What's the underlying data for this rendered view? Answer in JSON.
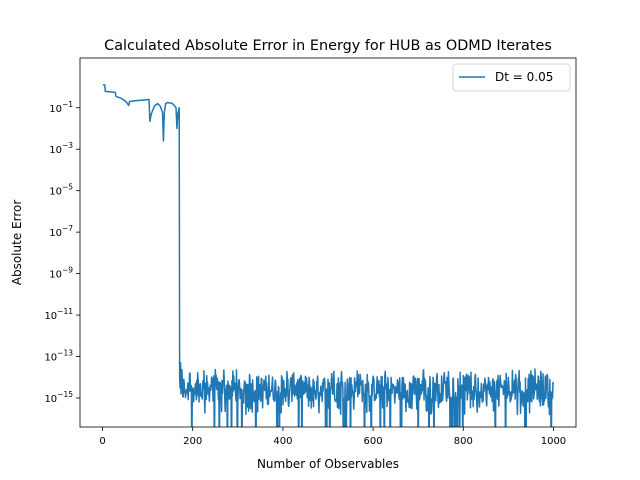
{
  "chart_data": {
    "type": "line",
    "title": "Calculated Absolute Error in Energy for HUB as ODMD Iterates",
    "xlabel": "Number of Observables",
    "ylabel": "Absolute Error",
    "xlim": [
      -50,
      1050
    ],
    "ylim_log10": [
      -16.4,
      1.4
    ],
    "yscale": "log",
    "grid": false,
    "legend": {
      "location": "top-right",
      "entries": [
        "Dt = 0.05"
      ]
    },
    "x_ticks": [
      0,
      200,
      400,
      600,
      800,
      1000
    ],
    "x_tick_labels": [
      "0",
      "200",
      "400",
      "600",
      "800",
      "1000"
    ],
    "y_ticks": [
      {
        "base": "10",
        "exp": "−15",
        "log10": -15
      },
      {
        "base": "10",
        "exp": "−13",
        "log10": -13
      },
      {
        "base": "10",
        "exp": "−11",
        "log10": -11
      },
      {
        "base": "10",
        "exp": "−9",
        "log10": -9
      },
      {
        "base": "10",
        "exp": "−7",
        "log10": -7
      },
      {
        "base": "10",
        "exp": "−5",
        "log10": -5
      },
      {
        "base": "10",
        "exp": "−3",
        "log10": -3
      },
      {
        "base": "10",
        "exp": "−1",
        "log10": -1
      }
    ],
    "series": [
      {
        "name": "Dt = 0.05",
        "color": "#1f77b4",
        "head_points": [
          {
            "x": 1,
            "y": 1.3
          },
          {
            "x": 5,
            "y": 1.25
          },
          {
            "x": 6,
            "y": 0.62
          },
          {
            "x": 28,
            "y": 0.55
          },
          {
            "x": 30,
            "y": 0.35
          },
          {
            "x": 42,
            "y": 0.28
          },
          {
            "x": 52,
            "y": 0.2
          },
          {
            "x": 58,
            "y": 0.13
          },
          {
            "x": 60,
            "y": 0.2
          },
          {
            "x": 75,
            "y": 0.22
          },
          {
            "x": 95,
            "y": 0.24
          },
          {
            "x": 103,
            "y": 0.25
          },
          {
            "x": 105,
            "y": 0.022
          },
          {
            "x": 108,
            "y": 0.05
          },
          {
            "x": 115,
            "y": 0.12
          },
          {
            "x": 122,
            "y": 0.16
          },
          {
            "x": 128,
            "y": 0.12
          },
          {
            "x": 133,
            "y": 0.06
          },
          {
            "x": 135,
            "y": 0.0025
          },
          {
            "x": 137,
            "y": 0.06
          },
          {
            "x": 140,
            "y": 0.16
          },
          {
            "x": 145,
            "y": 0.18
          },
          {
            "x": 155,
            "y": 0.16
          },
          {
            "x": 163,
            "y": 0.1
          },
          {
            "x": 165,
            "y": 0.01
          },
          {
            "x": 167,
            "y": 0.05
          },
          {
            "x": 170,
            "y": 0.1
          },
          {
            "x": 171,
            "y": 1e-14
          },
          {
            "x": 172,
            "y": 3e-15
          },
          {
            "x": 173,
            "y": 5e-14
          }
        ],
        "noise_floor": {
          "x_start": 173,
          "x_end": 1000,
          "typical_range_log10": [
            -15.2,
            -13.9
          ],
          "occasional_dips_to_zero": true
        }
      }
    ]
  }
}
